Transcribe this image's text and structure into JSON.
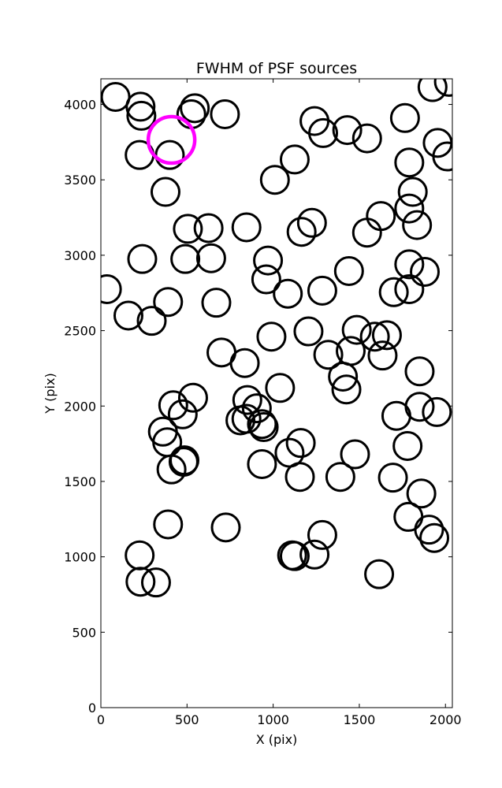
{
  "chart_data": {
    "type": "scatter",
    "title": "FWHM of PSF sources",
    "xlabel": "X (pix)",
    "ylabel": "Y (pix)",
    "xlim": [
      0,
      2040
    ],
    "ylim": [
      0,
      4170
    ],
    "xticks": [
      0,
      500,
      1000,
      1500,
      2000
    ],
    "yticks": [
      0,
      500,
      1000,
      1500,
      2000,
      2500,
      3000,
      3500,
      4000
    ],
    "grid": false,
    "colors": {
      "source": "#000000",
      "highlight": "#ff00ff"
    },
    "series": [
      {
        "marker": "open-circle",
        "points": [
          [
            85,
            4050
          ],
          [
            230,
            3985
          ],
          [
            235,
            3925
          ],
          [
            545,
            3975
          ],
          [
            525,
            3935
          ],
          [
            720,
            3935
          ],
          [
            225,
            3665
          ],
          [
            400,
            3665
          ],
          [
            375,
            3420
          ],
          [
            1240,
            3890
          ],
          [
            1290,
            3810
          ],
          [
            1430,
            3830
          ],
          [
            1545,
            3775
          ],
          [
            1765,
            3910
          ],
          [
            1790,
            3615
          ],
          [
            1925,
            4115
          ],
          [
            2020,
            4150
          ],
          [
            1955,
            3745
          ],
          [
            2010,
            3655
          ],
          [
            1125,
            3635
          ],
          [
            1010,
            3500
          ],
          [
            1810,
            3420
          ],
          [
            1790,
            3310
          ],
          [
            1835,
            3200
          ],
          [
            1625,
            3260
          ],
          [
            1545,
            3150
          ],
          [
            1225,
            3215
          ],
          [
            1165,
            3155
          ],
          [
            845,
            3185
          ],
          [
            505,
            3175
          ],
          [
            625,
            3180
          ],
          [
            240,
            2975
          ],
          [
            490,
            2975
          ],
          [
            640,
            2980
          ],
          [
            970,
            2965
          ],
          [
            960,
            2840
          ],
          [
            1085,
            2745
          ],
          [
            1285,
            2765
          ],
          [
            1440,
            2895
          ],
          [
            1790,
            2940
          ],
          [
            1880,
            2890
          ],
          [
            1700,
            2755
          ],
          [
            1790,
            2775
          ],
          [
            35,
            2775
          ],
          [
            160,
            2600
          ],
          [
            295,
            2565
          ],
          [
            390,
            2690
          ],
          [
            670,
            2685
          ],
          [
            990,
            2460
          ],
          [
            1205,
            2495
          ],
          [
            1485,
            2505
          ],
          [
            1590,
            2460
          ],
          [
            1660,
            2470
          ],
          [
            1635,
            2335
          ],
          [
            1320,
            2340
          ],
          [
            1450,
            2365
          ],
          [
            700,
            2355
          ],
          [
            835,
            2285
          ],
          [
            1405,
            2195
          ],
          [
            1425,
            2110
          ],
          [
            1040,
            2120
          ],
          [
            1850,
            2230
          ],
          [
            1715,
            1935
          ],
          [
            1850,
            1995
          ],
          [
            1950,
            1960
          ],
          [
            535,
            2055
          ],
          [
            420,
            2005
          ],
          [
            475,
            1945
          ],
          [
            360,
            1830
          ],
          [
            385,
            1760
          ],
          [
            410,
            1580
          ],
          [
            485,
            1640
          ],
          [
            480,
            1630
          ],
          [
            850,
            2040
          ],
          [
            810,
            1905
          ],
          [
            845,
            1915
          ],
          [
            905,
            1985
          ],
          [
            935,
            1880
          ],
          [
            945,
            1860
          ],
          [
            935,
            1615
          ],
          [
            1095,
            1690
          ],
          [
            1160,
            1755
          ],
          [
            1155,
            1530
          ],
          [
            1390,
            1530
          ],
          [
            1475,
            1680
          ],
          [
            1695,
            1525
          ],
          [
            1780,
            1735
          ],
          [
            1860,
            1420
          ],
          [
            1785,
            1265
          ],
          [
            1905,
            1180
          ],
          [
            1935,
            1125
          ],
          [
            390,
            1215
          ],
          [
            725,
            1195
          ],
          [
            225,
            1010
          ],
          [
            230,
            835
          ],
          [
            320,
            830
          ],
          [
            1110,
            1010
          ],
          [
            1125,
            1005
          ],
          [
            1240,
            1015
          ],
          [
            1285,
            1145
          ],
          [
            1615,
            885
          ]
        ]
      },
      {
        "marker": "open-circle",
        "highlight": true,
        "points": [
          [
            410,
            3765
          ]
        ]
      }
    ]
  }
}
